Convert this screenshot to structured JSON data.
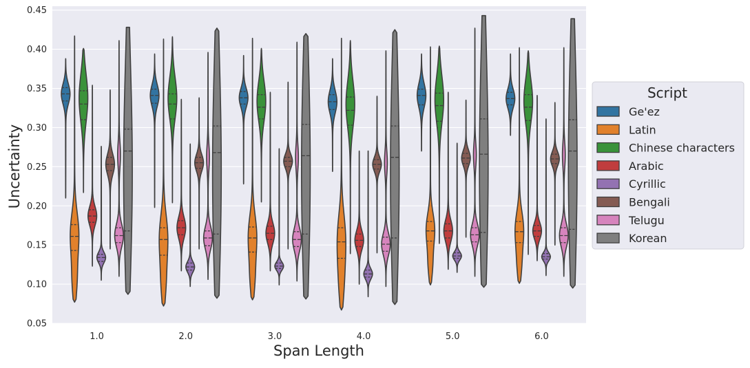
{
  "chart_data": {
    "type": "violin",
    "xlabel": "Span Length",
    "ylabel": "Uncertainty",
    "x_ticks": [
      "1.0",
      "2.0",
      "3.0",
      "4.0",
      "5.0",
      "6.0"
    ],
    "y_ticks": [
      "0.05",
      "0.10",
      "0.15",
      "0.20",
      "0.25",
      "0.30",
      "0.35",
      "0.40",
      "0.45"
    ],
    "ylim": [
      0.05,
      0.455
    ],
    "grid": true,
    "legend": {
      "title": "Script",
      "placement": "center-right-outside"
    },
    "series": [
      {
        "name": "Ge'ez",
        "color": "#3274a1",
        "groups": [
          {
            "min": 0.21,
            "max": 0.388,
            "q1": 0.334,
            "median": 0.343,
            "q3": 0.351,
            "lo_mode": 0.343,
            "hi_mode": 0.343,
            "lo_w": 1.0,
            "hi_w": 0.0
          },
          {
            "min": 0.198,
            "max": 0.394,
            "q1": 0.331,
            "median": 0.341,
            "q3": 0.349,
            "lo_mode": 0.341,
            "hi_mode": 0.341,
            "lo_w": 1.0,
            "hi_w": 0.0
          },
          {
            "min": 0.228,
            "max": 0.392,
            "q1": 0.33,
            "median": 0.338,
            "q3": 0.346,
            "lo_mode": 0.338,
            "hi_mode": 0.338,
            "lo_w": 1.0,
            "hi_w": 0.0
          },
          {
            "min": 0.244,
            "max": 0.388,
            "q1": 0.323,
            "median": 0.333,
            "q3": 0.342,
            "lo_mode": 0.333,
            "hi_mode": 0.333,
            "lo_w": 1.0,
            "hi_w": 0.0
          },
          {
            "min": 0.27,
            "max": 0.394,
            "q1": 0.329,
            "median": 0.341,
            "q3": 0.349,
            "lo_mode": 0.341,
            "hi_mode": 0.341,
            "lo_w": 1.0,
            "hi_w": 0.0
          },
          {
            "min": 0.29,
            "max": 0.394,
            "q1": 0.329,
            "median": 0.337,
            "q3": 0.345,
            "lo_mode": 0.337,
            "hi_mode": 0.337,
            "lo_w": 1.0,
            "hi_w": 0.0
          }
        ]
      },
      {
        "name": "Latin",
        "color": "#e1812c",
        "groups": [
          {
            "min": 0.077,
            "max": 0.417,
            "q1": 0.143,
            "median": 0.161,
            "q3": 0.176,
            "lo_mode": 0.105,
            "hi_mode": 0.164,
            "lo_w": 0.55,
            "hi_w": 1.0
          },
          {
            "min": 0.072,
            "max": 0.413,
            "q1": 0.137,
            "median": 0.157,
            "q3": 0.172,
            "lo_mode": 0.102,
            "hi_mode": 0.16,
            "lo_w": 0.55,
            "hi_w": 1.0
          },
          {
            "min": 0.08,
            "max": 0.414,
            "q1": 0.141,
            "median": 0.159,
            "q3": 0.173,
            "lo_mode": 0.108,
            "hi_mode": 0.162,
            "lo_w": 0.55,
            "hi_w": 1.0
          },
          {
            "min": 0.067,
            "max": 0.414,
            "q1": 0.133,
            "median": 0.154,
            "q3": 0.172,
            "lo_mode": 0.1,
            "hi_mode": 0.158,
            "lo_w": 0.55,
            "hi_w": 1.0
          },
          {
            "min": 0.099,
            "max": 0.403,
            "q1": 0.155,
            "median": 0.168,
            "q3": 0.18,
            "lo_mode": 0.125,
            "hi_mode": 0.17,
            "lo_w": 0.5,
            "hi_w": 1.0
          },
          {
            "min": 0.101,
            "max": 0.402,
            "q1": 0.153,
            "median": 0.167,
            "q3": 0.18,
            "lo_mode": 0.125,
            "hi_mode": 0.17,
            "lo_w": 0.5,
            "hi_w": 1.0
          }
        ]
      },
      {
        "name": "Chinese characters",
        "color": "#3a923a",
        "groups": [
          {
            "min": 0.217,
            "max": 0.401,
            "q1": 0.31,
            "median": 0.33,
            "q3": 0.347,
            "lo_mode": 0.33,
            "hi_mode": 0.34,
            "lo_w": 0.25,
            "hi_w": 1.0
          },
          {
            "min": 0.204,
            "max": 0.416,
            "q1": 0.311,
            "median": 0.33,
            "q3": 0.343,
            "lo_mode": 0.33,
            "hi_mode": 0.34,
            "lo_w": 0.25,
            "hi_w": 1.0
          },
          {
            "min": 0.205,
            "max": 0.401,
            "q1": 0.311,
            "median": 0.326,
            "q3": 0.342,
            "lo_mode": 0.326,
            "hi_mode": 0.336,
            "lo_w": 0.25,
            "hi_w": 1.0
          },
          {
            "min": 0.139,
            "max": 0.411,
            "q1": 0.303,
            "median": 0.322,
            "q3": 0.339,
            "lo_mode": 0.322,
            "hi_mode": 0.332,
            "lo_w": 0.25,
            "hi_w": 1.0
          },
          {
            "min": 0.152,
            "max": 0.404,
            "q1": 0.308,
            "median": 0.328,
            "q3": 0.344,
            "lo_mode": 0.328,
            "hi_mode": 0.338,
            "lo_w": 0.25,
            "hi_w": 1.0
          },
          {
            "min": 0.138,
            "max": 0.398,
            "q1": 0.309,
            "median": 0.326,
            "q3": 0.342,
            "lo_mode": 0.326,
            "hi_mode": 0.336,
            "lo_w": 0.25,
            "hi_w": 1.0
          }
        ]
      },
      {
        "name": "Arabic",
        "color": "#c03d3e",
        "groups": [
          {
            "min": 0.123,
            "max": 0.354,
            "q1": 0.179,
            "median": 0.187,
            "q3": 0.195,
            "lo_mode": 0.187,
            "hi_mode": 0.187,
            "lo_w": 1.0,
            "hi_w": 0.0
          },
          {
            "min": 0.117,
            "max": 0.336,
            "q1": 0.163,
            "median": 0.172,
            "q3": 0.181,
            "lo_mode": 0.172,
            "hi_mode": 0.172,
            "lo_w": 1.0,
            "hi_w": 0.0
          },
          {
            "min": 0.117,
            "max": 0.345,
            "q1": 0.157,
            "median": 0.165,
            "q3": 0.174,
            "lo_mode": 0.165,
            "hi_mode": 0.165,
            "lo_w": 1.0,
            "hi_w": 0.0
          },
          {
            "min": 0.1,
            "max": 0.27,
            "q1": 0.148,
            "median": 0.156,
            "q3": 0.164,
            "lo_mode": 0.156,
            "hi_mode": 0.156,
            "lo_w": 1.0,
            "hi_w": 0.0
          },
          {
            "min": 0.119,
            "max": 0.345,
            "q1": 0.159,
            "median": 0.168,
            "q3": 0.177,
            "lo_mode": 0.168,
            "hi_mode": 0.168,
            "lo_w": 1.0,
            "hi_w": 0.0
          },
          {
            "min": 0.13,
            "max": 0.341,
            "q1": 0.161,
            "median": 0.168,
            "q3": 0.175,
            "lo_mode": 0.168,
            "hi_mode": 0.168,
            "lo_w": 1.0,
            "hi_w": 0.0
          }
        ]
      },
      {
        "name": "Cyrillic",
        "color": "#9372b2",
        "groups": [
          {
            "min": 0.105,
            "max": 0.276,
            "q1": 0.129,
            "median": 0.134,
            "q3": 0.138,
            "lo_mode": 0.134,
            "hi_mode": 0.134,
            "lo_w": 1.0,
            "hi_w": 0.0
          },
          {
            "min": 0.097,
            "max": 0.279,
            "q1": 0.118,
            "median": 0.122,
            "q3": 0.127,
            "lo_mode": 0.122,
            "hi_mode": 0.122,
            "lo_w": 1.0,
            "hi_w": 0.0
          },
          {
            "min": 0.099,
            "max": 0.273,
            "q1": 0.12,
            "median": 0.123,
            "q3": 0.127,
            "lo_mode": 0.123,
            "hi_mode": 0.123,
            "lo_w": 1.0,
            "hi_w": 0.0
          },
          {
            "min": 0.084,
            "max": 0.27,
            "q1": 0.109,
            "median": 0.113,
            "q3": 0.118,
            "lo_mode": 0.113,
            "hi_mode": 0.113,
            "lo_w": 1.0,
            "hi_w": 0.0
          },
          {
            "min": 0.115,
            "max": 0.28,
            "q1": 0.133,
            "median": 0.136,
            "q3": 0.14,
            "lo_mode": 0.136,
            "hi_mode": 0.136,
            "lo_w": 1.0,
            "hi_w": 0.0
          },
          {
            "min": 0.111,
            "max": 0.311,
            "q1": 0.132,
            "median": 0.135,
            "q3": 0.139,
            "lo_mode": 0.135,
            "hi_mode": 0.135,
            "lo_w": 1.0,
            "hi_w": 0.0
          }
        ]
      },
      {
        "name": "Bengali",
        "color": "#845b53",
        "groups": [
          {
            "min": 0.145,
            "max": 0.348,
            "q1": 0.245,
            "median": 0.253,
            "q3": 0.262,
            "lo_mode": 0.253,
            "hi_mode": 0.253,
            "lo_w": 1.0,
            "hi_w": 0.0
          },
          {
            "min": 0.145,
            "max": 0.338,
            "q1": 0.248,
            "median": 0.255,
            "q3": 0.262,
            "lo_mode": 0.255,
            "hi_mode": 0.255,
            "lo_w": 1.0,
            "hi_w": 0.0
          },
          {
            "min": 0.145,
            "max": 0.358,
            "q1": 0.25,
            "median": 0.257,
            "q3": 0.262,
            "lo_mode": 0.257,
            "hi_mode": 0.257,
            "lo_w": 1.0,
            "hi_w": 0.0
          },
          {
            "min": 0.14,
            "max": 0.34,
            "q1": 0.247,
            "median": 0.253,
            "q3": 0.259,
            "lo_mode": 0.253,
            "hi_mode": 0.253,
            "lo_w": 1.0,
            "hi_w": 0.0
          },
          {
            "min": 0.16,
            "max": 0.335,
            "q1": 0.254,
            "median": 0.261,
            "q3": 0.267,
            "lo_mode": 0.261,
            "hi_mode": 0.261,
            "lo_w": 1.0,
            "hi_w": 0.0
          },
          {
            "min": 0.15,
            "max": 0.332,
            "q1": 0.254,
            "median": 0.26,
            "q3": 0.266,
            "lo_mode": 0.26,
            "hi_mode": 0.26,
            "lo_w": 1.0,
            "hi_w": 0.0
          }
        ]
      },
      {
        "name": "Telugu",
        "color": "#d684bd",
        "groups": [
          {
            "min": 0.11,
            "max": 0.411,
            "q1": 0.153,
            "median": 0.162,
            "q3": 0.172,
            "lo_mode": 0.162,
            "hi_mode": 0.265,
            "lo_w": 1.0,
            "hi_w": 0.3
          },
          {
            "min": 0.106,
            "max": 0.396,
            "q1": 0.149,
            "median": 0.159,
            "q3": 0.168,
            "lo_mode": 0.159,
            "hi_mode": 0.262,
            "lo_w": 1.0,
            "hi_w": 0.3
          },
          {
            "min": 0.104,
            "max": 0.409,
            "q1": 0.148,
            "median": 0.157,
            "q3": 0.167,
            "lo_mode": 0.157,
            "hi_mode": 0.262,
            "lo_w": 1.0,
            "hi_w": 0.3
          },
          {
            "min": 0.097,
            "max": 0.398,
            "q1": 0.142,
            "median": 0.151,
            "q3": 0.16,
            "lo_mode": 0.151,
            "hi_mode": 0.255,
            "lo_w": 1.0,
            "hi_w": 0.3
          },
          {
            "min": 0.11,
            "max": 0.427,
            "q1": 0.154,
            "median": 0.163,
            "q3": 0.172,
            "lo_mode": 0.163,
            "hi_mode": 0.265,
            "lo_w": 1.0,
            "hi_w": 0.3
          },
          {
            "min": 0.11,
            "max": 0.402,
            "q1": 0.153,
            "median": 0.162,
            "q3": 0.172,
            "lo_mode": 0.162,
            "hi_mode": 0.265,
            "lo_w": 1.0,
            "hi_w": 0.3
          }
        ]
      },
      {
        "name": "Korean",
        "color": "#7f7f7f",
        "groups": [
          {
            "min": 0.087,
            "max": 0.428,
            "q1": 0.168,
            "median": 0.27,
            "q3": 0.298,
            "lo_mode": 0.165,
            "hi_mode": 0.3,
            "lo_w": 0.7,
            "hi_w": 1.0
          },
          {
            "min": 0.082,
            "max": 0.427,
            "q1": 0.164,
            "median": 0.268,
            "q3": 0.302,
            "lo_mode": 0.162,
            "hi_mode": 0.302,
            "lo_w": 0.7,
            "hi_w": 1.0
          },
          {
            "min": 0.081,
            "max": 0.42,
            "q1": 0.164,
            "median": 0.264,
            "q3": 0.304,
            "lo_mode": 0.162,
            "hi_mode": 0.305,
            "lo_w": 0.7,
            "hi_w": 1.0
          },
          {
            "min": 0.074,
            "max": 0.425,
            "q1": 0.159,
            "median": 0.262,
            "q3": 0.302,
            "lo_mode": 0.158,
            "hi_mode": 0.302,
            "lo_w": 0.7,
            "hi_w": 1.0
          },
          {
            "min": 0.096,
            "max": 0.443,
            "q1": 0.166,
            "median": 0.266,
            "q3": 0.311,
            "lo_mode": 0.165,
            "hi_mode": 0.311,
            "lo_w": 0.7,
            "hi_w": 1.0
          },
          {
            "min": 0.095,
            "max": 0.439,
            "q1": 0.17,
            "median": 0.27,
            "q3": 0.31,
            "lo_mode": 0.168,
            "hi_mode": 0.31,
            "lo_w": 0.7,
            "hi_w": 1.0
          }
        ]
      }
    ]
  }
}
